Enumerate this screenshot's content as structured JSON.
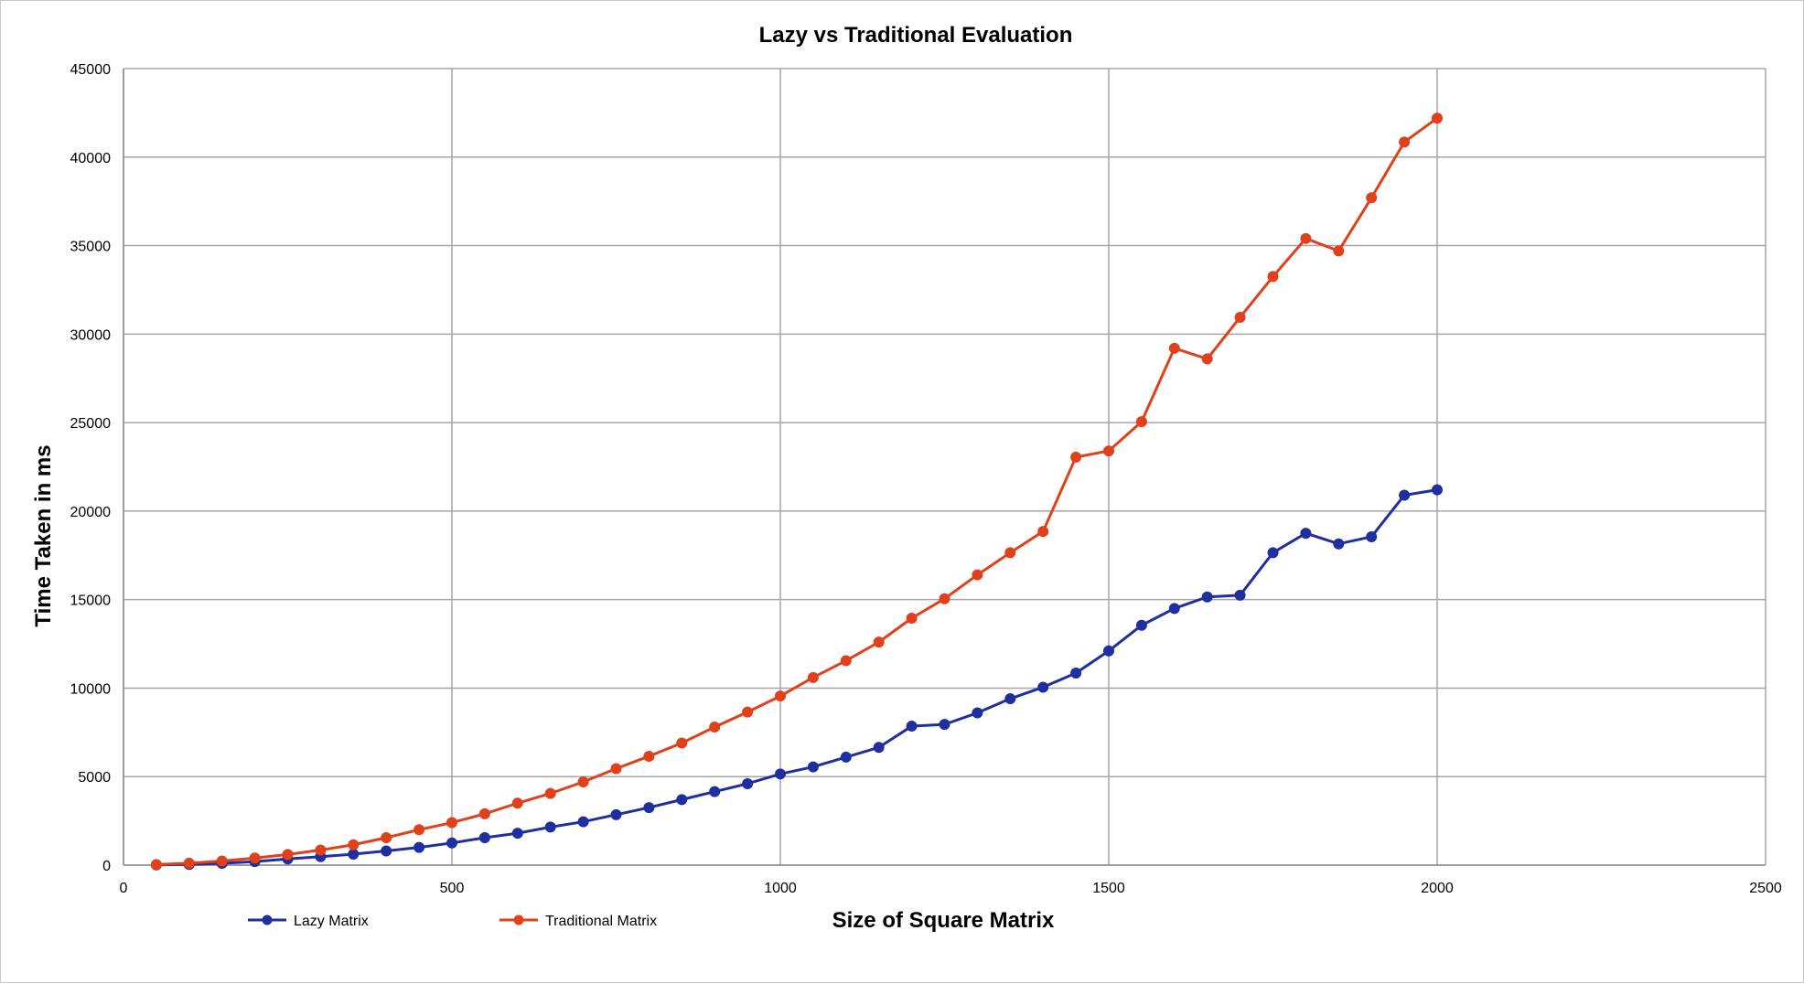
{
  "chart_data": {
    "type": "line",
    "title": "Lazy vs Traditional Evaluation",
    "xlabel": "Size of Square Matrix",
    "ylabel": "Time Taken in ms",
    "xlim": [
      0,
      2500
    ],
    "ylim": [
      0,
      45000
    ],
    "xticks": [
      0,
      500,
      1000,
      1500,
      2000,
      2500
    ],
    "yticks": [
      0,
      5000,
      10000,
      15000,
      20000,
      25000,
      30000,
      35000,
      40000,
      45000
    ],
    "grid": true,
    "legend_position": "bottom-left",
    "x": [
      50,
      100,
      150,
      200,
      250,
      300,
      350,
      400,
      450,
      500,
      550,
      600,
      650,
      700,
      750,
      800,
      850,
      900,
      950,
      1000,
      1050,
      1100,
      1150,
      1200,
      1250,
      1300,
      1350,
      1400,
      1450,
      1500,
      1550,
      1600,
      1650,
      1700,
      1750,
      1800,
      1850,
      1900,
      1950,
      2000
    ],
    "series": [
      {
        "name": "Lazy Matrix",
        "color": "#1f2f9f",
        "values": [
          10,
          40,
          100,
          200,
          350,
          480,
          620,
          800,
          1000,
          1250,
          1550,
          1800,
          2150,
          2450,
          2850,
          3250,
          3700,
          4150,
          4600,
          5150,
          5550,
          6100,
          6650,
          7850,
          7950,
          8600,
          9400,
          10050,
          10850,
          12100,
          13550,
          14500,
          15150,
          15250,
          17650,
          18750,
          18150,
          18550,
          20900,
          21200
        ]
      },
      {
        "name": "Traditional Matrix",
        "color": "#e0401a",
        "values": [
          30,
          110,
          230,
          400,
          600,
          850,
          1150,
          1550,
          2000,
          2400,
          2900,
          3500,
          4050,
          4700,
          5450,
          6150,
          6900,
          7800,
          8650,
          9550,
          10600,
          11550,
          12600,
          13950,
          15050,
          16400,
          17650,
          18850,
          23050,
          23400,
          25050,
          29200,
          28600,
          30950,
          33250,
          35400,
          34700,
          37700,
          40850,
          42200
        ]
      }
    ]
  }
}
